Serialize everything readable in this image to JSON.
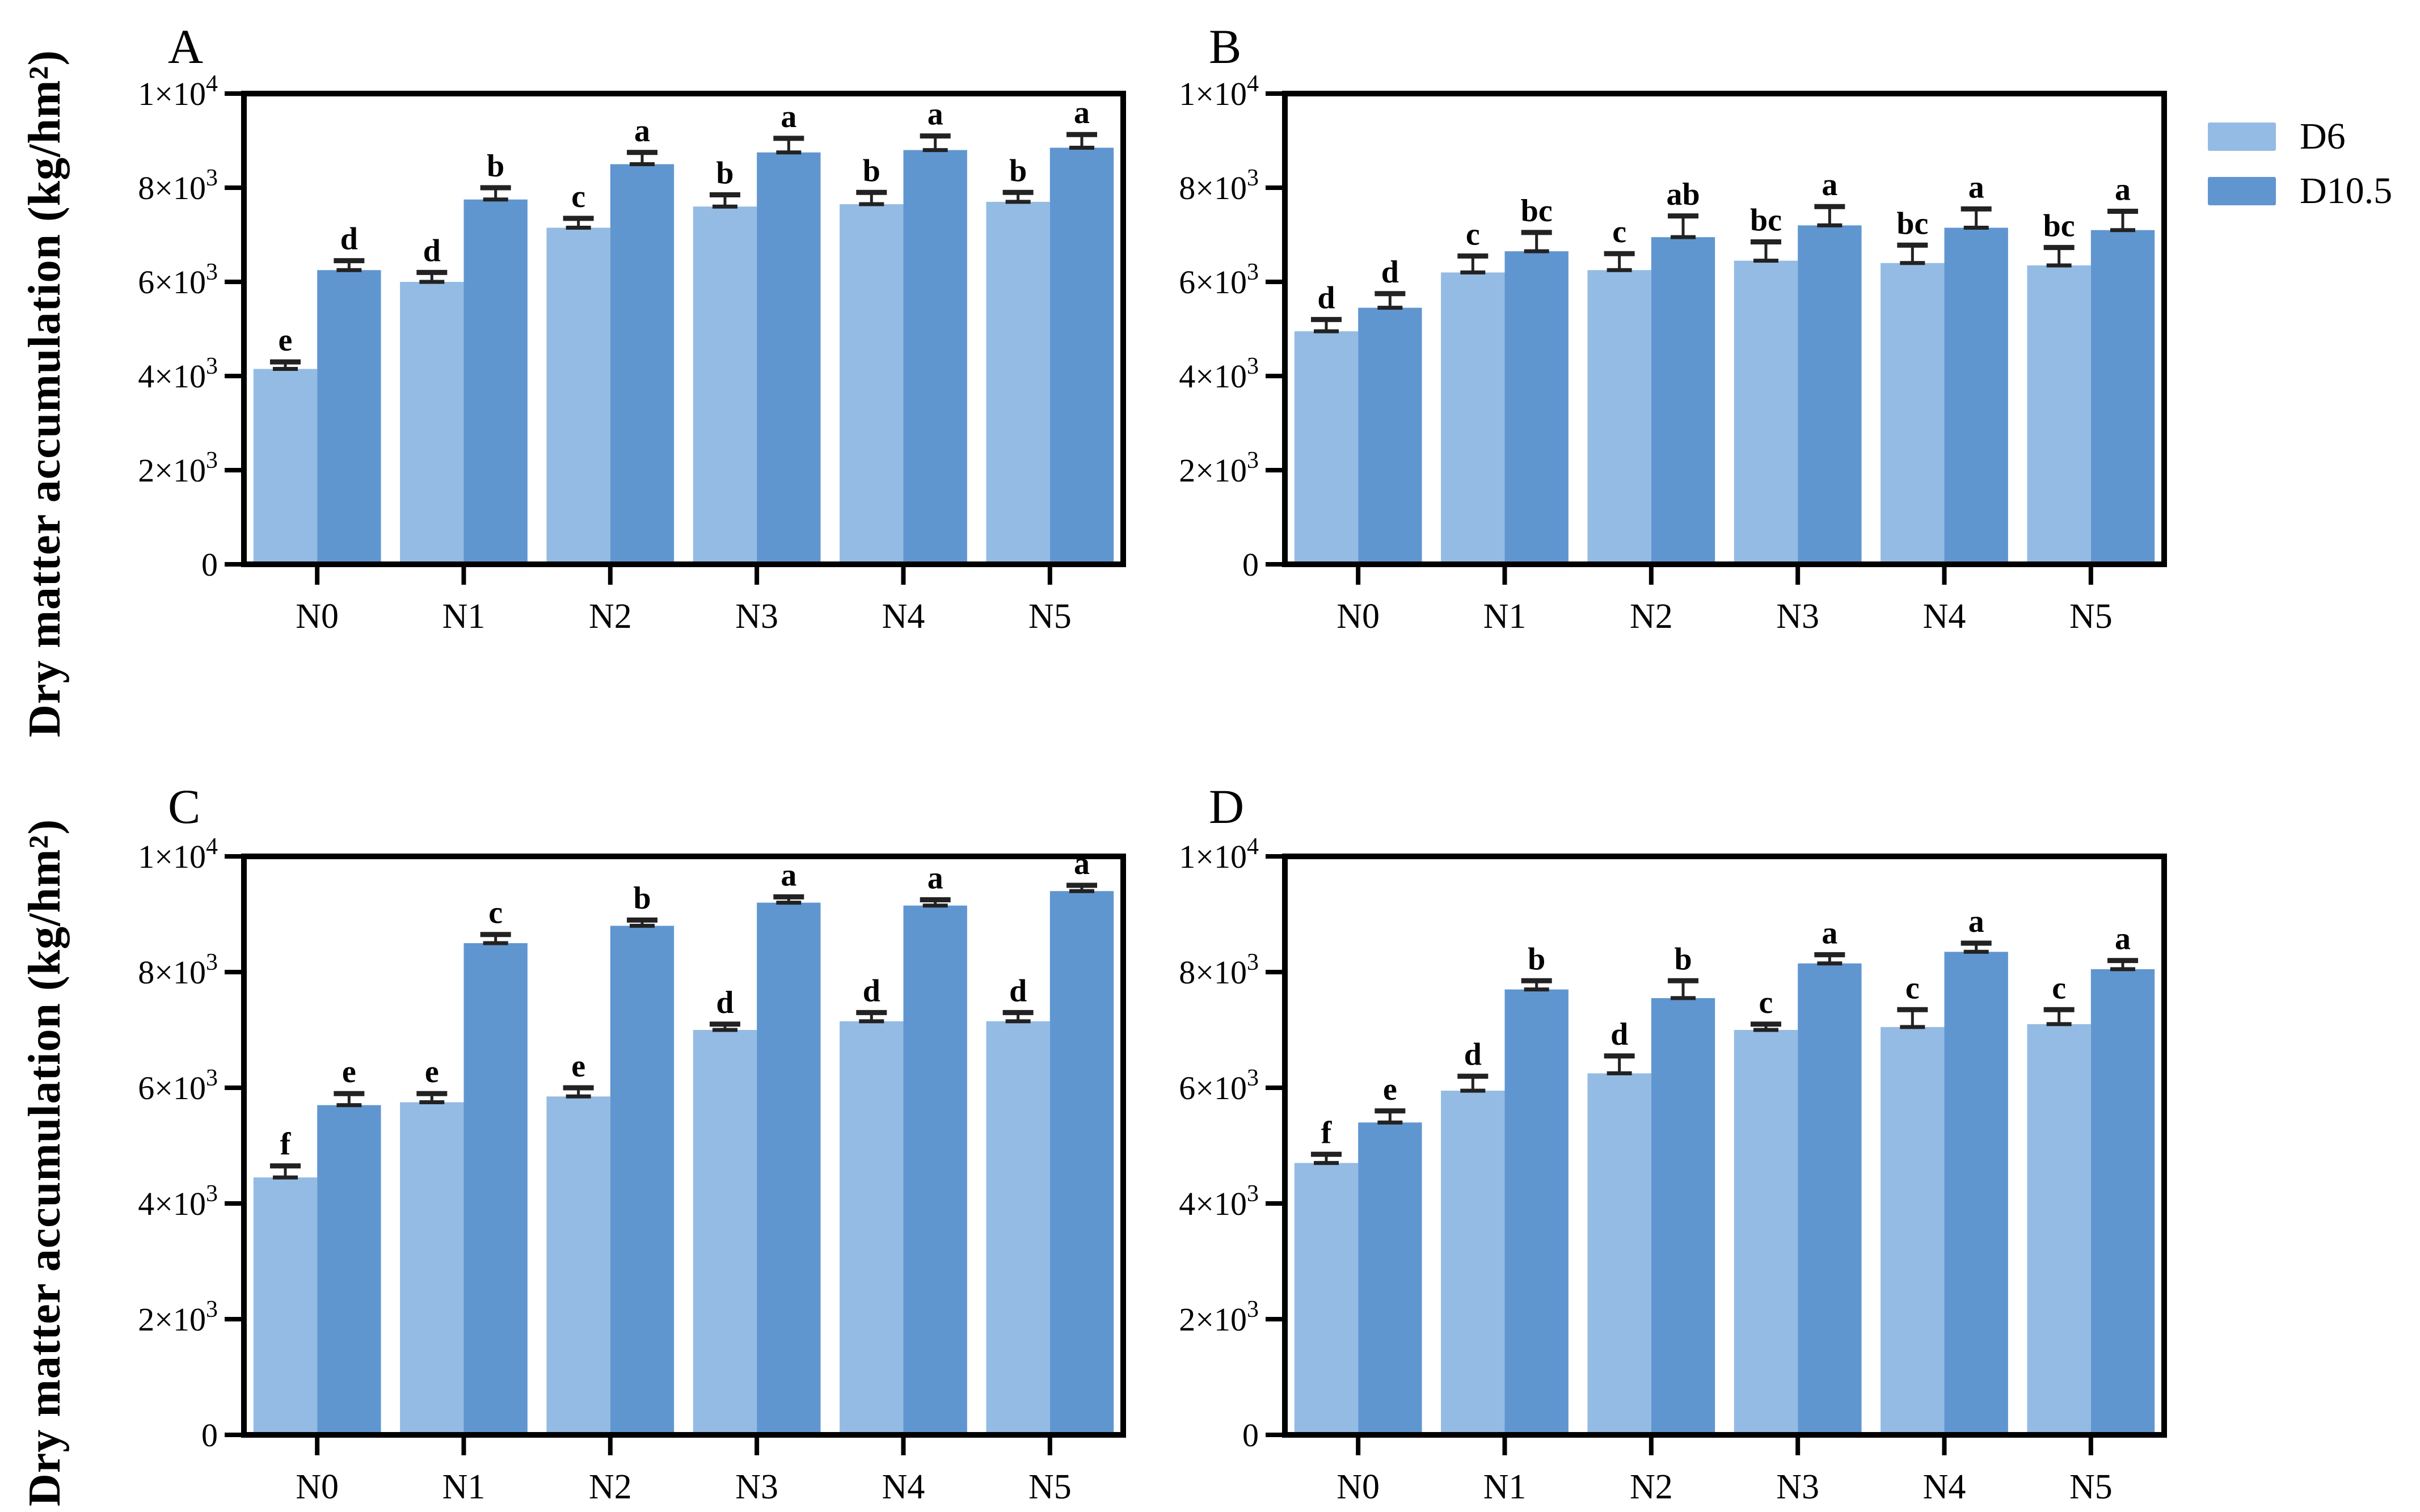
{
  "figure": {
    "ylabel": "Dry matter accumulation (kg/hm²)",
    "legend": {
      "items": [
        {
          "label": "D6",
          "color": "#94BBE3"
        },
        {
          "label": "D10.5",
          "color": "#6096D0"
        }
      ]
    }
  },
  "chart_data": [
    {
      "type": "bar",
      "panel_label": "A",
      "categories": [
        "N0",
        "N1",
        "N2",
        "N3",
        "N4",
        "N5"
      ],
      "ylim": [
        0,
        10000
      ],
      "ylabel": "Dry matter accumulation (kg/hm²)",
      "yticks": [
        {
          "v": 0,
          "label": "0",
          "sup": ""
        },
        {
          "v": 2000,
          "label": "2×10",
          "sup": "3"
        },
        {
          "v": 4000,
          "label": "4×10",
          "sup": "3"
        },
        {
          "v": 6000,
          "label": "6×10",
          "sup": "3"
        },
        {
          "v": 8000,
          "label": "8×10",
          "sup": "3"
        },
        {
          "v": 10000,
          "label": "1×10",
          "sup": "4"
        }
      ],
      "series": [
        {
          "name": "D6",
          "color": "#94BBE3",
          "values": [
            4150,
            6000,
            7150,
            7600,
            7650,
            7700
          ],
          "errors": [
            150,
            200,
            200,
            250,
            250,
            200
          ],
          "sig_letters": [
            "e",
            "d",
            "c",
            "b",
            "b",
            "b"
          ]
        },
        {
          "name": "D10.5",
          "color": "#6096D0",
          "values": [
            6250,
            7750,
            8500,
            8750,
            8800,
            8850
          ],
          "errors": [
            200,
            250,
            250,
            300,
            300,
            280
          ],
          "sig_letters": [
            "d",
            "b",
            "a",
            "a",
            "a",
            "a"
          ]
        }
      ]
    },
    {
      "type": "bar",
      "panel_label": "B",
      "categories": [
        "N0",
        "N1",
        "N2",
        "N3",
        "N4",
        "N5"
      ],
      "ylim": [
        0,
        10000
      ],
      "ylabel": "Dry matter accumulation (kg/hm²)",
      "yticks": [
        {
          "v": 0,
          "label": "0",
          "sup": ""
        },
        {
          "v": 2000,
          "label": "2×10",
          "sup": "3"
        },
        {
          "v": 4000,
          "label": "4×10",
          "sup": "3"
        },
        {
          "v": 6000,
          "label": "6×10",
          "sup": "3"
        },
        {
          "v": 8000,
          "label": "8×10",
          "sup": "3"
        },
        {
          "v": 10000,
          "label": "1×10",
          "sup": "4"
        }
      ],
      "series": [
        {
          "name": "D6",
          "color": "#94BBE3",
          "values": [
            4950,
            6200,
            6250,
            6450,
            6400,
            6350
          ],
          "errors": [
            250,
            350,
            350,
            400,
            380,
            380
          ],
          "sig_letters": [
            "d",
            "c",
            "c",
            "bc",
            "bc",
            "bc"
          ]
        },
        {
          "name": "D10.5",
          "color": "#6096D0",
          "values": [
            5450,
            6650,
            6950,
            7200,
            7150,
            7100
          ],
          "errors": [
            300,
            400,
            450,
            400,
            400,
            400
          ],
          "sig_letters": [
            "d",
            "bc",
            "ab",
            "a",
            "a",
            "a"
          ]
        }
      ]
    },
    {
      "type": "bar",
      "panel_label": "C",
      "categories": [
        "N0",
        "N1",
        "N2",
        "N3",
        "N4",
        "N5"
      ],
      "ylim": [
        0,
        10000
      ],
      "ylabel": "Dry matter accumulation (kg/hm²)",
      "yticks": [
        {
          "v": 0,
          "label": "0",
          "sup": ""
        },
        {
          "v": 2000,
          "label": "2×10",
          "sup": "3"
        },
        {
          "v": 4000,
          "label": "4×10",
          "sup": "3"
        },
        {
          "v": 6000,
          "label": "6×10",
          "sup": "3"
        },
        {
          "v": 8000,
          "label": "8×10",
          "sup": "3"
        },
        {
          "v": 10000,
          "label": "1×10",
          "sup": "4"
        }
      ],
      "series": [
        {
          "name": "D6",
          "color": "#94BBE3",
          "values": [
            4450,
            5750,
            5850,
            7000,
            7150,
            7150
          ],
          "errors": [
            200,
            150,
            150,
            100,
            150,
            150
          ],
          "sig_letters": [
            "f",
            "e",
            "e",
            "d",
            "d",
            "d"
          ]
        },
        {
          "name": "D10.5",
          "color": "#6096D0",
          "values": [
            5700,
            8500,
            8800,
            9200,
            9150,
            9400
          ],
          "errors": [
            200,
            150,
            100,
            100,
            100,
            100
          ],
          "sig_letters": [
            "e",
            "c",
            "b",
            "a",
            "a",
            "a"
          ]
        }
      ]
    },
    {
      "type": "bar",
      "panel_label": "D",
      "categories": [
        "N0",
        "N1",
        "N2",
        "N3",
        "N4",
        "N5"
      ],
      "ylim": [
        0,
        10000
      ],
      "ylabel": "Dry matter accumulation (kg/hm²)",
      "yticks": [
        {
          "v": 0,
          "label": "0",
          "sup": ""
        },
        {
          "v": 2000,
          "label": "2×10",
          "sup": "3"
        },
        {
          "v": 4000,
          "label": "4×10",
          "sup": "3"
        },
        {
          "v": 6000,
          "label": "6×10",
          "sup": "3"
        },
        {
          "v": 8000,
          "label": "8×10",
          "sup": "3"
        },
        {
          "v": 10000,
          "label": "1×10",
          "sup": "4"
        }
      ],
      "series": [
        {
          "name": "D6",
          "color": "#94BBE3",
          "values": [
            4700,
            5950,
            6250,
            7000,
            7050,
            7100
          ],
          "errors": [
            150,
            250,
            300,
            100,
            300,
            250
          ],
          "sig_letters": [
            "f",
            "d",
            "d",
            "c",
            "c",
            "c"
          ]
        },
        {
          "name": "D10.5",
          "color": "#6096D0",
          "values": [
            5400,
            7700,
            7550,
            8150,
            8350,
            8050
          ],
          "errors": [
            200,
            150,
            300,
            150,
            150,
            150
          ],
          "sig_letters": [
            "e",
            "b",
            "b",
            "a",
            "a",
            "a"
          ]
        }
      ]
    }
  ]
}
